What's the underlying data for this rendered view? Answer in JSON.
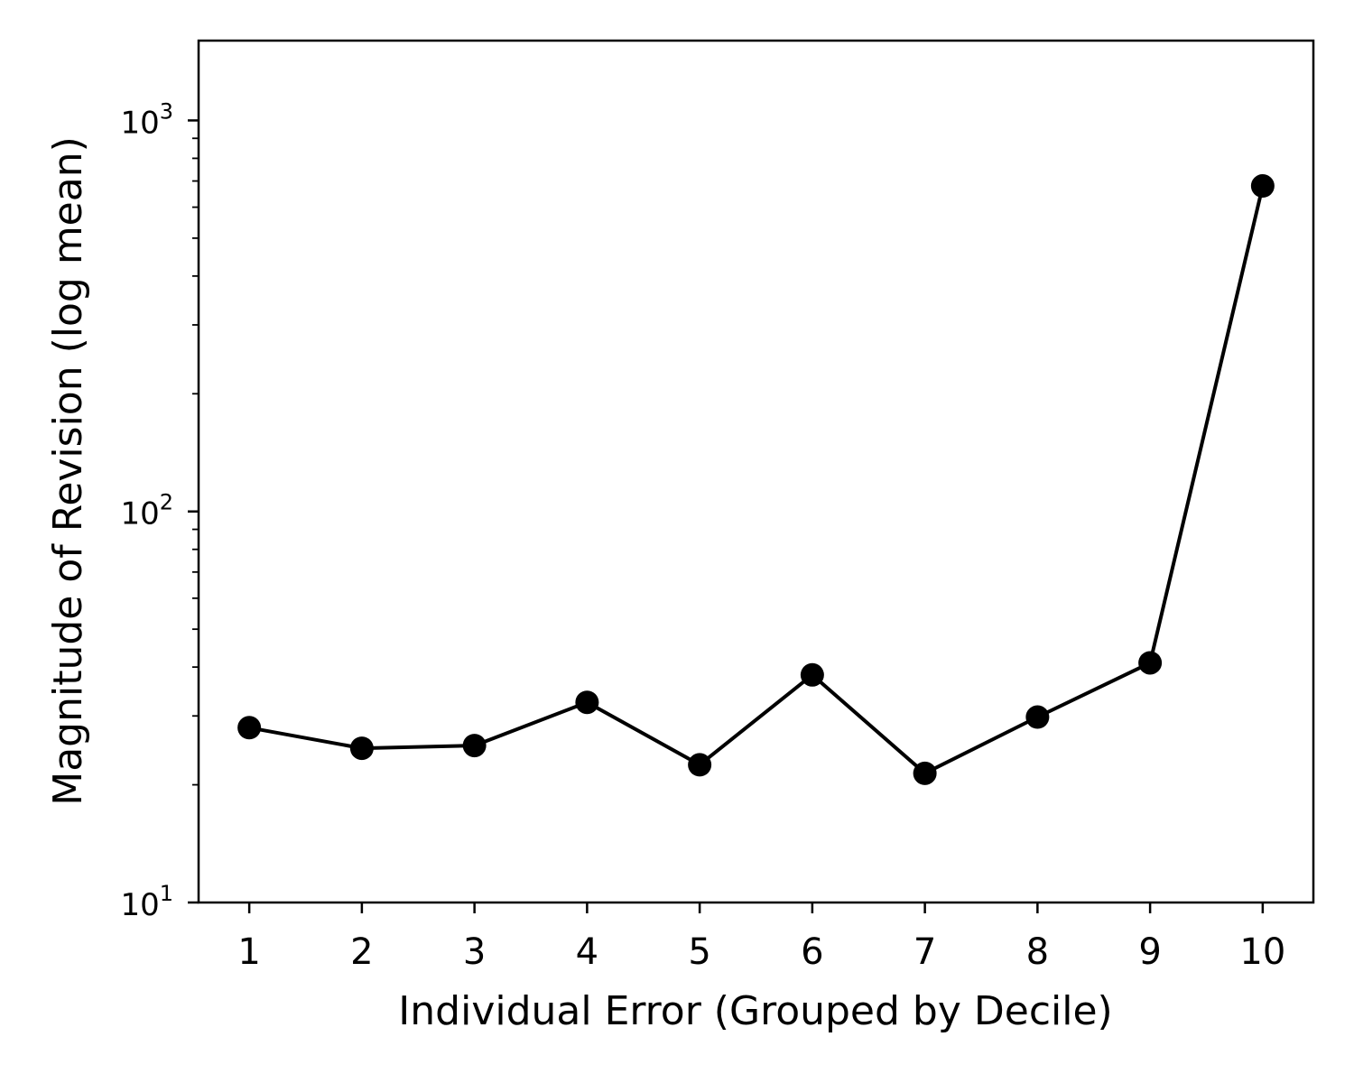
{
  "chart_data": {
    "type": "line",
    "xlabel": "Individual Error (Grouped by Decile)",
    "ylabel": "Magnitude of Revision (log mean)",
    "yscale": "log",
    "ylim": [
      10,
      1600
    ],
    "xlim": [
      0.55,
      10.45
    ],
    "x": [
      1,
      2,
      3,
      4,
      5,
      6,
      7,
      8,
      9,
      10
    ],
    "xticks": [
      "1",
      "2",
      "3",
      "4",
      "5",
      "6",
      "7",
      "8",
      "9",
      "10"
    ],
    "yticks": [
      {
        "base": "10",
        "exp": "1",
        "value": 10
      },
      {
        "base": "10",
        "exp": "2",
        "value": 100
      },
      {
        "base": "10",
        "exp": "3",
        "value": 1000
      }
    ],
    "series": [
      {
        "values": [
          28,
          24.8,
          25.2,
          32.5,
          22.5,
          38.2,
          21.4,
          29.8,
          41,
          680
        ],
        "color": "#000000",
        "marker": "circle"
      }
    ],
    "grid": false,
    "legend": "none"
  }
}
